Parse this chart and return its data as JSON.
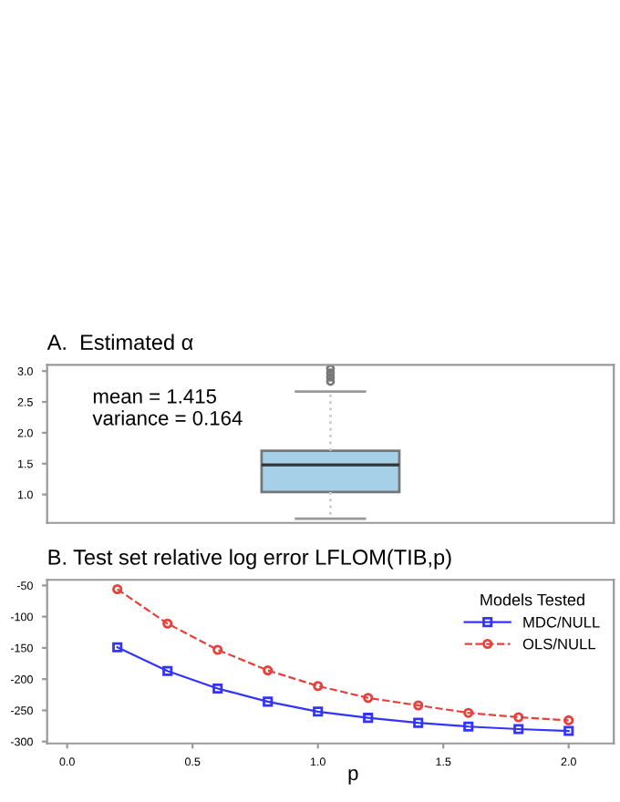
{
  "chart_data": [
    {
      "type": "box",
      "title": "A.  Estimated α",
      "categories": [
        null
      ],
      "boxes": [
        {
          "low": 0.61,
          "q1": 1.04,
          "median": 1.48,
          "q3": 1.71,
          "high": 2.67,
          "outliers": [
            2.83,
            2.9,
            2.97,
            3.04
          ]
        }
      ],
      "color": "#a6cfe8",
      "ylim": [
        0.54,
        3.1
      ],
      "yticks": [
        {
          "value": 1.0,
          "label": "1.0"
        },
        {
          "value": 1.5,
          "label": "1.5"
        },
        {
          "value": 2.0,
          "label": "2.0"
        },
        {
          "value": 2.5,
          "label": "2.5"
        },
        {
          "value": 3.0,
          "label": "3.0"
        }
      ],
      "annotations": [
        "mean = 1.415",
        "variance = 0.164"
      ]
    },
    {
      "type": "line",
      "title": "B. Test set relative log error LFLOM(TIB,p)",
      "xlabel": "p",
      "legend_title": "Models Tested",
      "legend": "top right",
      "x": [
        0.2,
        0.4,
        0.6,
        0.8,
        1.0,
        1.2,
        1.4,
        1.6,
        1.8,
        2.0
      ],
      "series": [
        {
          "name": "MDC/NULL",
          "color": "#3333ff",
          "marker": "square",
          "line_style": "solid",
          "values": [
            -149,
            -187,
            -215,
            -236,
            -252,
            -262,
            -270,
            -276,
            -280,
            -283
          ]
        },
        {
          "name": "OLS/NULL",
          "color": "#e8413c",
          "marker": "circle",
          "line_style": "dashed",
          "values": [
            -56,
            -111,
            -153,
            -186,
            -211,
            -230,
            -242,
            -254,
            -261,
            -266
          ]
        }
      ],
      "xlim": [
        -0.08,
        2.18
      ],
      "xticks": [
        {
          "value": 0.0,
          "label": "0.0"
        },
        {
          "value": 0.5,
          "label": "0.5"
        },
        {
          "value": 1.0,
          "label": "1.0"
        },
        {
          "value": 1.5,
          "label": "1.5"
        },
        {
          "value": 2.0,
          "label": "2.0"
        }
      ],
      "ylim": [
        -303,
        -41
      ],
      "yticks": [
        -50,
        -100,
        -150,
        -200,
        -250,
        -300
      ]
    }
  ]
}
